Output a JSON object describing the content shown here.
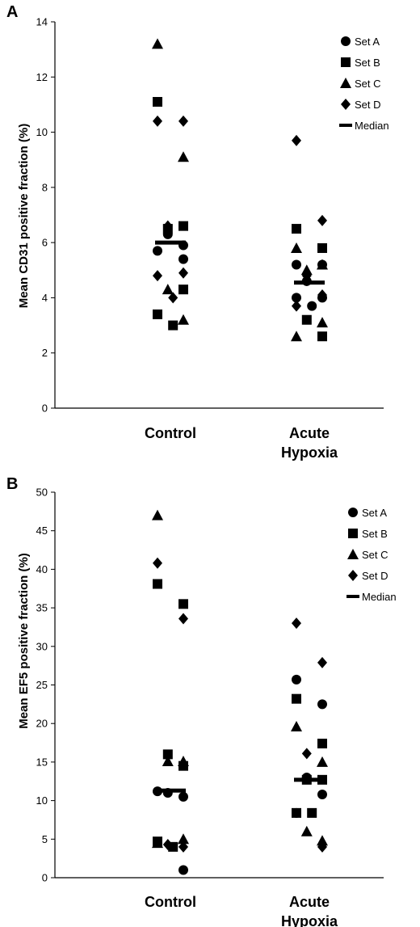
{
  "chart_data": [
    {
      "panel": "A",
      "type": "scatter",
      "ylabel": "Mean CD31 positive fraction (%)",
      "ylim": [
        0,
        14
      ],
      "yticks": [
        0,
        2,
        4,
        6,
        8,
        10,
        12,
        14
      ],
      "categories": [
        "Control",
        "Acute\nHypoxia"
      ],
      "category_lines": [
        [
          "Control"
        ],
        [
          "Acute",
          "Hypoxia"
        ]
      ],
      "legend": [
        "Set A",
        "Set B",
        "Set C",
        "Set D",
        "Median"
      ],
      "legend_position": "top-right",
      "marker_symbols": [
        "circle",
        "square",
        "triangle",
        "diamond",
        "dash"
      ],
      "series": [
        {
          "name": "Set A",
          "points": [
            {
              "category": "Control",
              "y": 5.7
            },
            {
              "category": "Control",
              "y": 5.4
            },
            {
              "category": "Control",
              "y": 6.3
            },
            {
              "category": "Control",
              "y": 5.9
            },
            {
              "category": "Acute\nHypoxia",
              "y": 5.2
            },
            {
              "category": "Acute\nHypoxia",
              "y": 5.2
            },
            {
              "category": "Acute\nHypoxia",
              "y": 4.6
            },
            {
              "category": "Acute\nHypoxia",
              "y": 4.0
            },
            {
              "category": "Acute\nHypoxia",
              "y": 4.0
            },
            {
              "category": "Acute\nHypoxia",
              "y": 3.7
            }
          ]
        },
        {
          "name": "Set B",
          "points": [
            {
              "category": "Control",
              "y": 11.1
            },
            {
              "category": "Control",
              "y": 6.6
            },
            {
              "category": "Control",
              "y": 6.5
            },
            {
              "category": "Control",
              "y": 4.3
            },
            {
              "category": "Control",
              "y": 3.4
            },
            {
              "category": "Control",
              "y": 3.0
            },
            {
              "category": "Acute\nHypoxia",
              "y": 6.5
            },
            {
              "category": "Acute\nHypoxia",
              "y": 5.8
            },
            {
              "category": "Acute\nHypoxia",
              "y": 3.2
            },
            {
              "category": "Acute\nHypoxia",
              "y": 2.6
            }
          ]
        },
        {
          "name": "Set C",
          "points": [
            {
              "category": "Control",
              "y": 13.2
            },
            {
              "category": "Control",
              "y": 9.1
            },
            {
              "category": "Control",
              "y": 4.3
            },
            {
              "category": "Control",
              "y": 3.2
            },
            {
              "category": "Acute\nHypoxia",
              "y": 5.8
            },
            {
              "category": "Acute\nHypoxia",
              "y": 5.2
            },
            {
              "category": "Acute\nHypoxia",
              "y": 5.0
            },
            {
              "category": "Acute\nHypoxia",
              "y": 3.1
            },
            {
              "category": "Acute\nHypoxia",
              "y": 2.6
            }
          ]
        },
        {
          "name": "Set D",
          "points": [
            {
              "category": "Control",
              "y": 10.4
            },
            {
              "category": "Control",
              "y": 10.4
            },
            {
              "category": "Control",
              "y": 6.6
            },
            {
              "category": "Control",
              "y": 4.9
            },
            {
              "category": "Control",
              "y": 4.8
            },
            {
              "category": "Control",
              "y": 4.0
            },
            {
              "category": "Acute\nHypoxia",
              "y": 9.7
            },
            {
              "category": "Acute\nHypoxia",
              "y": 6.8
            },
            {
              "category": "Acute\nHypoxia",
              "y": 4.8
            },
            {
              "category": "Acute\nHypoxia",
              "y": 4.1
            },
            {
              "category": "Acute\nHypoxia",
              "y": 3.7
            }
          ]
        }
      ],
      "medians": [
        {
          "category": "Control",
          "y": 6.0
        },
        {
          "category": "Acute\nHypoxia",
          "y": 4.55
        }
      ]
    },
    {
      "panel": "B",
      "type": "scatter",
      "ylabel": "Mean EF5 positive fraction (%)",
      "ylim": [
        0,
        50
      ],
      "yticks": [
        0,
        5,
        10,
        15,
        20,
        25,
        30,
        35,
        40,
        45,
        50
      ],
      "categories": [
        "Control",
        "Acute\nHypoxia"
      ],
      "category_lines": [
        [
          "Control"
        ],
        [
          "Acute",
          "Hypoxia"
        ]
      ],
      "legend": [
        "Set A",
        "Set B",
        "Set C",
        "Set D",
        "Median"
      ],
      "legend_position": "top-right",
      "marker_symbols": [
        "circle",
        "square",
        "triangle",
        "diamond",
        "dash"
      ],
      "series": [
        {
          "name": "Set A",
          "points": [
            {
              "category": "Control",
              "y": 11.2
            },
            {
              "category": "Control",
              "y": 10.5
            },
            {
              "category": "Control",
              "y": 11.0
            },
            {
              "category": "Control",
              "y": 1.0
            },
            {
              "category": "Acute\nHypoxia",
              "y": 25.7
            },
            {
              "category": "Acute\nHypoxia",
              "y": 22.5
            },
            {
              "category": "Acute\nHypoxia",
              "y": 13.0
            },
            {
              "category": "Acute\nHypoxia",
              "y": 10.8
            },
            {
              "category": "Acute\nHypoxia",
              "y": 8.4
            }
          ]
        },
        {
          "name": "Set B",
          "points": [
            {
              "category": "Control",
              "y": 38.1
            },
            {
              "category": "Control",
              "y": 35.5
            },
            {
              "category": "Control",
              "y": 16.0
            },
            {
              "category": "Control",
              "y": 14.5
            },
            {
              "category": "Control",
              "y": 4.7
            },
            {
              "category": "Control",
              "y": 4.0
            },
            {
              "category": "Acute\nHypoxia",
              "y": 23.2
            },
            {
              "category": "Acute\nHypoxia",
              "y": 17.4
            },
            {
              "category": "Acute\nHypoxia",
              "y": 12.7
            },
            {
              "category": "Acute\nHypoxia",
              "y": 12.7
            },
            {
              "category": "Acute\nHypoxia",
              "y": 8.4
            },
            {
              "category": "Acute\nHypoxia",
              "y": 8.4
            }
          ]
        },
        {
          "name": "Set C",
          "points": [
            {
              "category": "Control",
              "y": 47.0
            },
            {
              "category": "Control",
              "y": 15.1
            },
            {
              "category": "Control",
              "y": 15.1
            },
            {
              "category": "Control",
              "y": 5.0
            },
            {
              "category": "Control",
              "y": 4.5
            },
            {
              "category": "Acute\nHypoxia",
              "y": 19.6
            },
            {
              "category": "Acute\nHypoxia",
              "y": 15.0
            },
            {
              "category": "Acute\nHypoxia",
              "y": 6.0
            },
            {
              "category": "Acute\nHypoxia",
              "y": 4.8
            }
          ]
        },
        {
          "name": "Set D",
          "points": [
            {
              "category": "Control",
              "y": 40.8
            },
            {
              "category": "Control",
              "y": 33.6
            },
            {
              "category": "Control",
              "y": 4.3
            },
            {
              "category": "Control",
              "y": 4.0
            },
            {
              "category": "Acute\nHypoxia",
              "y": 33.0
            },
            {
              "category": "Acute\nHypoxia",
              "y": 27.9
            },
            {
              "category": "Acute\nHypoxia",
              "y": 16.1
            },
            {
              "category": "Acute\nHypoxia",
              "y": 4.0
            }
          ]
        }
      ],
      "medians": [
        {
          "category": "Control",
          "y": 11.3
        },
        {
          "category": "Acute\nHypoxia",
          "y": 12.7
        }
      ]
    }
  ]
}
